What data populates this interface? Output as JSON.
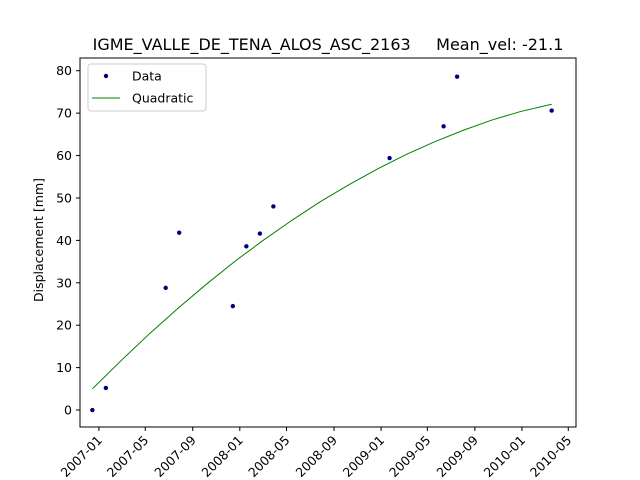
{
  "chart_data": {
    "type": "scatter",
    "title": "IGME_VALLE_DE_TENA_ALOS_ASC_2163     Mean_vel: -21.1",
    "xlabel": "",
    "ylabel": "Displacement [mm]",
    "x_scale": "date",
    "xlim": [
      "2006-11-13",
      "2010-05-21"
    ],
    "ylim": [
      -4,
      83
    ],
    "grid": false,
    "legend_position": "top-left",
    "x_ticks": [
      {
        "date": "2007-01-01",
        "label": "2007-01"
      },
      {
        "date": "2007-05-01",
        "label": "2007-05"
      },
      {
        "date": "2007-09-01",
        "label": "2007-09"
      },
      {
        "date": "2008-01-01",
        "label": "2008-01"
      },
      {
        "date": "2008-05-01",
        "label": "2008-05"
      },
      {
        "date": "2008-09-01",
        "label": "2008-09"
      },
      {
        "date": "2009-01-01",
        "label": "2009-01"
      },
      {
        "date": "2009-05-01",
        "label": "2009-05"
      },
      {
        "date": "2009-09-01",
        "label": "2009-09"
      },
      {
        "date": "2010-01-01",
        "label": "2010-01"
      },
      {
        "date": "2010-05-01",
        "label": "2010-05"
      }
    ],
    "y_ticks": [
      0,
      10,
      20,
      30,
      40,
      50,
      60,
      70,
      80
    ],
    "series": [
      {
        "name": "Data",
        "kind": "points",
        "color": "#00007f",
        "x": [
          "2006-12-15",
          "2007-01-19",
          "2007-06-23",
          "2007-07-28",
          "2007-12-14",
          "2008-01-18",
          "2008-02-22",
          "2008-03-28",
          "2009-01-23",
          "2009-06-12",
          "2009-07-17",
          "2010-03-19"
        ],
        "y": [
          0,
          5.2,
          28.8,
          41.8,
          24.5,
          38.6,
          41.6,
          48.0,
          59.4,
          66.9,
          78.6,
          70.6
        ]
      },
      {
        "name": "Quadratic",
        "kind": "line",
        "color": "#008000",
        "x": [
          "2006-12-15",
          "2007-02-27",
          "2007-05-12",
          "2007-07-25",
          "2007-10-07",
          "2007-12-20",
          "2008-03-03",
          "2008-05-16",
          "2008-07-29",
          "2008-10-11",
          "2008-12-24",
          "2009-03-08",
          "2009-05-21",
          "2009-08-03",
          "2009-10-16",
          "2009-12-29",
          "2010-03-19"
        ],
        "y": [
          5.0,
          11.6,
          18.0,
          24.0,
          29.7,
          35.1,
          40.1,
          44.8,
          49.2,
          53.2,
          56.9,
          60.3,
          63.3,
          66.0,
          68.4,
          70.4,
          72.1
        ]
      }
    ]
  }
}
